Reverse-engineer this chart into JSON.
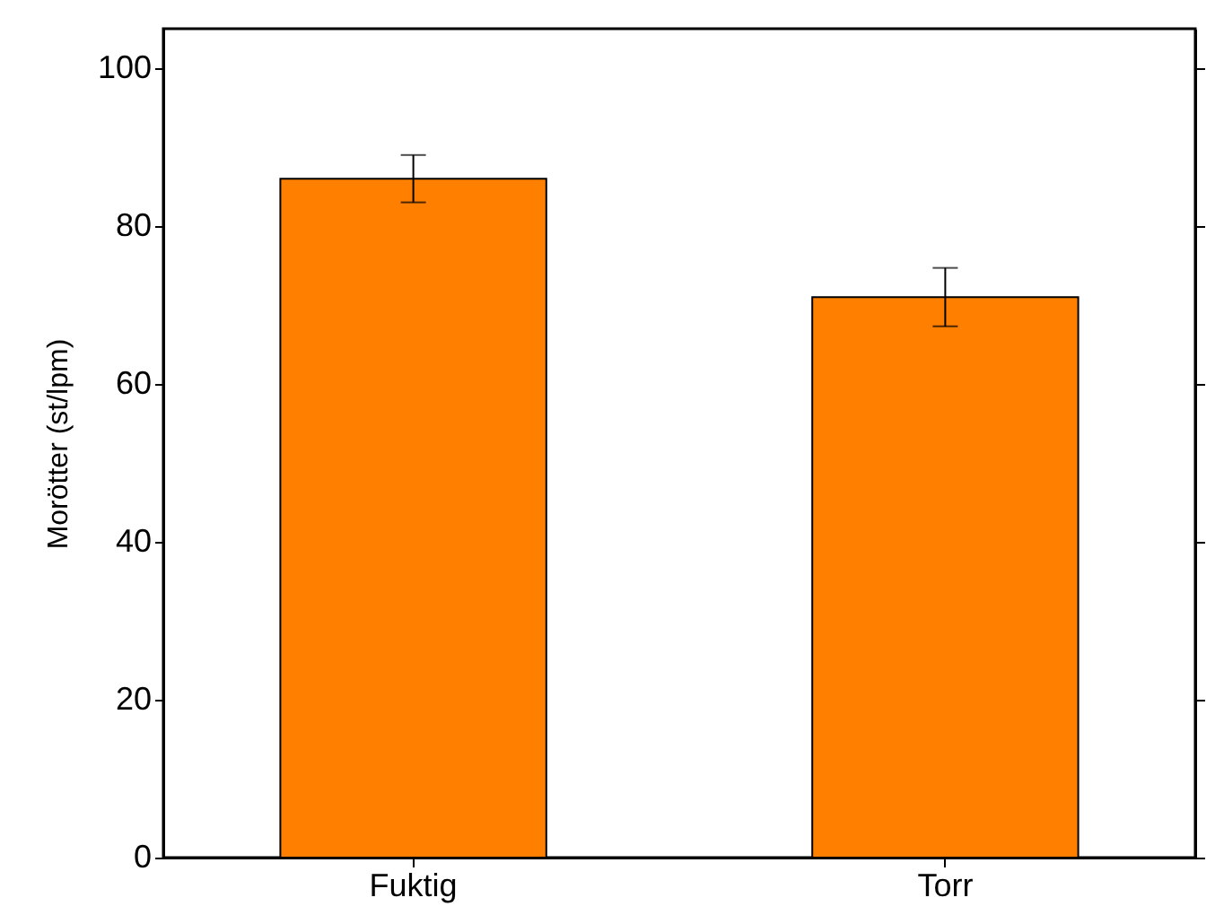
{
  "chart_data": {
    "type": "bar",
    "ylabel": "Morötter (st/lpm)",
    "categories": [
      "Fuktig",
      "Torr"
    ],
    "values": [
      86,
      71
    ],
    "errors": [
      3,
      3.7
    ],
    "color": "#ff8000",
    "ylim": [
      0,
      105
    ],
    "yticks": [
      0,
      20,
      40,
      60,
      80,
      100
    ],
    "grid": false
  }
}
